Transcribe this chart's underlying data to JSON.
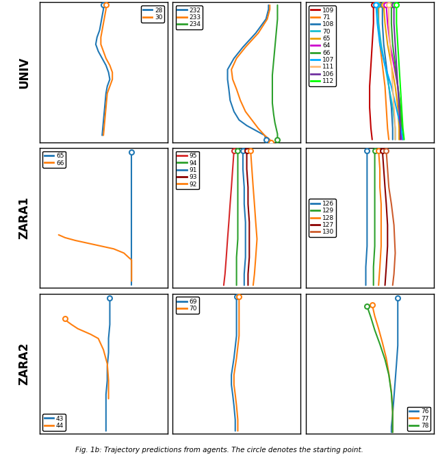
{
  "subplot_labels": [
    "UNIV",
    "ZARA1",
    "ZARA2"
  ],
  "fig_width": 6.4,
  "fig_height": 6.7,
  "dpi": 100,
  "panel_colors": {
    "0,0": {
      "28": "#1f77b4",
      "30": "#ff7f0e"
    },
    "0,1": {
      "232": "#1f77b4",
      "233": "#ff7f0e",
      "234": "#2ca02c"
    },
    "0,2": {
      "109": "#d62728",
      "71": "#ff7f0e",
      "108": "#1f77b4",
      "70": "#17becf",
      "65": "#ff7f0e",
      "64": "#e377c2",
      "66": "#2ca02c",
      "107": "#00bfff",
      "111": "#ffbb78",
      "106": "#9467bd",
      "112": "#7fff00"
    },
    "1,0": {
      "65": "#1f77b4",
      "66": "#ff7f0e"
    },
    "1,1": {
      "95": "#d62728",
      "94": "#2ca02c",
      "91": "#1f77b4",
      "93": "#8b0000",
      "92": "#ff7f0e"
    },
    "1,2": {
      "126": "#1f77b4",
      "129": "#2ca02c",
      "128": "#ff7f0e",
      "127": "#8b0000",
      "130": "#cd5c2c"
    },
    "2,0": {
      "43": "#1f77b4",
      "44": "#ff7f0e"
    },
    "2,1": {
      "69": "#1f77b4",
      "70": "#ff7f0e"
    },
    "2,2": {
      "76": "#1f77b4",
      "77": "#ff7f0e",
      "78": "#2ca02c"
    }
  },
  "legend_locs": {
    "0,0": "upper right",
    "0,1": "upper left",
    "0,2": "upper left",
    "1,0": "upper left",
    "1,1": "upper left",
    "1,2": "center left",
    "2,0": "lower left",
    "2,1": "upper left",
    "2,2": "lower right"
  }
}
